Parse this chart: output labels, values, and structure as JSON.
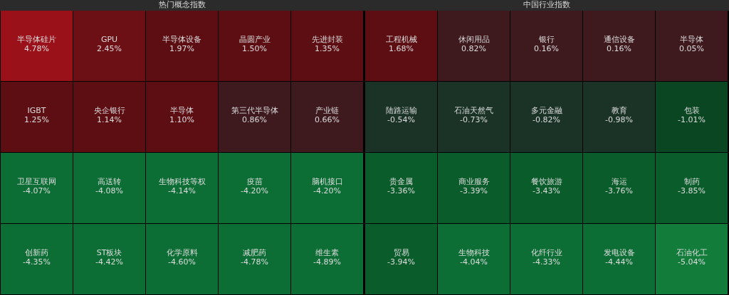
{
  "chart_data": [
    {
      "type": "other",
      "title": "热门概念指数",
      "categories": [
        "半导体硅片",
        "GPU",
        "半导体设备",
        "晶圆产业",
        "先进封装",
        "IGBT",
        "央企银行",
        "半导体",
        "第三代半导体",
        "产业链",
        "卫星互联网",
        "高送转",
        "生物科技等权",
        "疫苗",
        "脑机接口",
        "创新药",
        "ST板块",
        "化学原料",
        "减肥药",
        "维生素"
      ],
      "values": [
        4.78,
        2.45,
        1.97,
        1.5,
        1.35,
        1.25,
        1.14,
        1.1,
        0.86,
        0.66,
        -4.07,
        -4.08,
        -4.14,
        -4.2,
        -4.2,
        -4.35,
        -4.42,
        -4.6,
        -4.78,
        -4.89
      ],
      "value_labels": [
        "4.78%",
        "2.45%",
        "1.97%",
        "1.50%",
        "1.35%",
        "1.25%",
        "1.14%",
        "1.10%",
        "0.86%",
        "0.66%",
        "-4.07%",
        "-4.08%",
        "-4.14%",
        "-4.20%",
        "-4.20%",
        "-4.35%",
        "-4.42%",
        "-4.60%",
        "-4.78%",
        "-4.89%"
      ]
    },
    {
      "type": "other",
      "title": "中国行业指数",
      "categories": [
        "工程机械",
        "休闲用品",
        "银行",
        "通信设备",
        "半导体",
        "陆路运输",
        "石油天然气",
        "多元金融",
        "教育",
        "包装",
        "贵金属",
        "商业服务",
        "餐饮旅游",
        "海运",
        "制药",
        "贸易",
        "生物科技",
        "化纤行业",
        "发电设备",
        "石油化工"
      ],
      "values": [
        1.68,
        0.82,
        0.16,
        0.16,
        0.05,
        -0.54,
        -0.73,
        -0.82,
        -0.98,
        -1.01,
        -3.36,
        -3.39,
        -3.43,
        -3.76,
        -3.85,
        -3.94,
        -4.04,
        -4.33,
        -4.44,
        -5.04
      ],
      "value_labels": [
        "1.68%",
        "0.82%",
        "0.16%",
        "0.16%",
        "0.05%",
        "-0.54%",
        "-0.73%",
        "-0.82%",
        "-0.98%",
        "-1.01%",
        "-3.36%",
        "-3.39%",
        "-3.43%",
        "-3.76%",
        "-3.85%",
        "-3.94%",
        "-4.04%",
        "-4.33%",
        "-4.44%",
        "-5.04%"
      ]
    }
  ]
}
